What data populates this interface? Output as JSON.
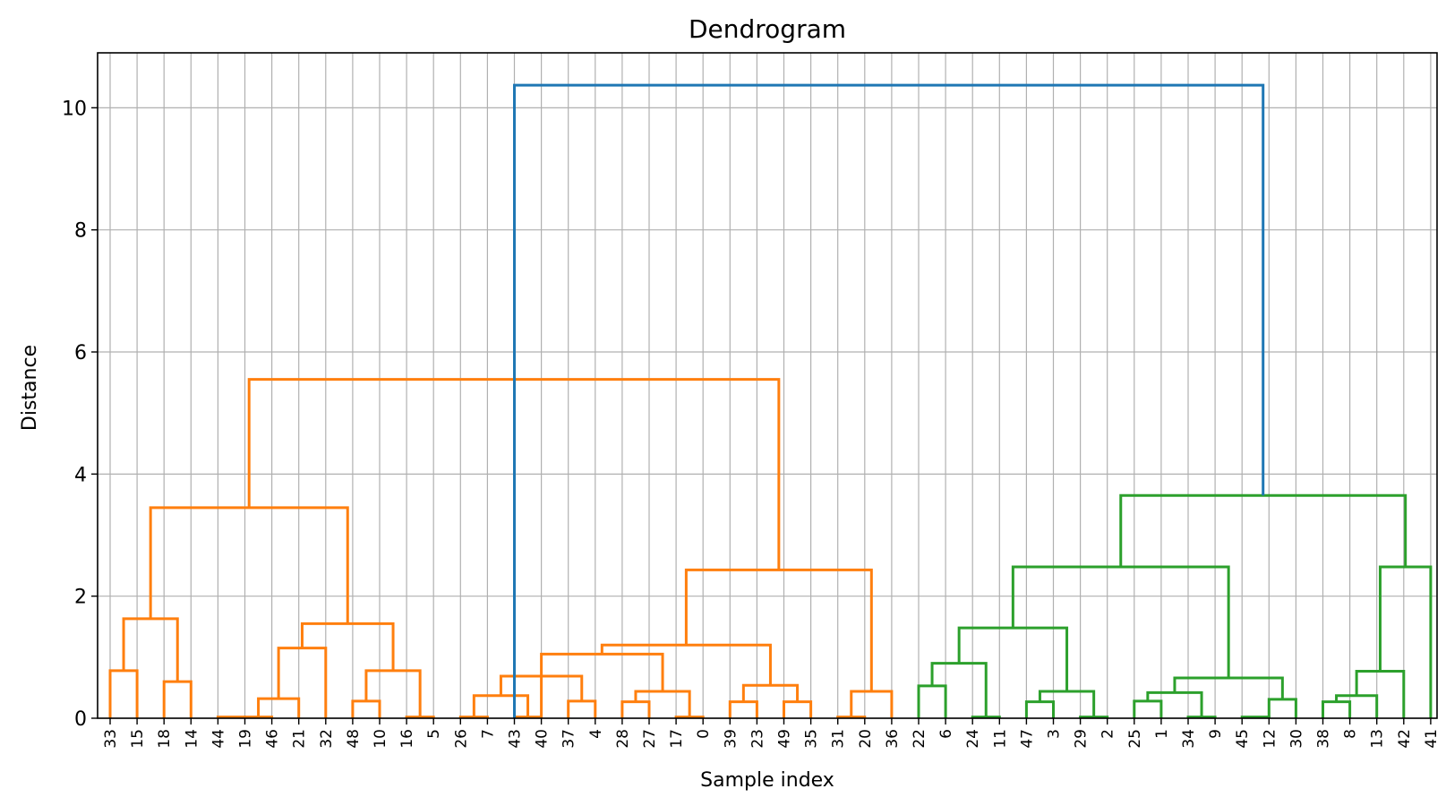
{
  "chart_data": {
    "type": "dendrogram",
    "title": "Dendrogram",
    "xlabel": "Sample index",
    "ylabel": "Distance",
    "ylim": [
      0,
      10.9
    ],
    "yticks": [
      0,
      2,
      4,
      6,
      8,
      10
    ],
    "grid": true,
    "leaves": [
      "33",
      "15",
      "18",
      "14",
      "44",
      "19",
      "46",
      "21",
      "32",
      "48",
      "10",
      "16",
      "5",
      "26",
      "7",
      "43",
      "40",
      "37",
      "4",
      "28",
      "27",
      "17",
      "0",
      "39",
      "23",
      "49",
      "35",
      "31",
      "20",
      "36",
      "22",
      "6",
      "24",
      "11",
      "47",
      "3",
      "29",
      "2",
      "25",
      "1",
      "34",
      "9",
      "45",
      "12",
      "30",
      "38",
      "8",
      "13",
      "42",
      "41"
    ],
    "colors": {
      "orange": "#ff7f0e",
      "green": "#2ca02c",
      "blue": "#1f77b4"
    },
    "links": [
      {
        "left": 0,
        "right": 1,
        "height": 0.78,
        "color": "orange"
      },
      {
        "left": 2,
        "right": 3,
        "height": 0.6,
        "color": "orange"
      },
      {
        "left": 0.5,
        "right": 2.5,
        "height": 1.63,
        "color": "orange"
      },
      {
        "left": 4,
        "right": 5,
        "height": 0.02,
        "color": "orange"
      },
      {
        "left": 5,
        "right": 6,
        "height": 0.02,
        "color": "orange"
      },
      {
        "left": 5.5,
        "right": 7,
        "height": 0.32,
        "color": "orange"
      },
      {
        "left": 6.25,
        "right": 8,
        "height": 1.15,
        "color": "orange"
      },
      {
        "left": 9,
        "right": 10,
        "height": 0.28,
        "color": "orange"
      },
      {
        "left": 11,
        "right": 12,
        "height": 0.02,
        "color": "orange"
      },
      {
        "left": 9.5,
        "right": 11.5,
        "height": 0.78,
        "color": "orange"
      },
      {
        "left": 7.125,
        "right": 10.5,
        "height": 1.55,
        "color": "orange"
      },
      {
        "left": 1.5,
        "right": 8.8125,
        "height": 3.45,
        "color": "orange"
      },
      {
        "left": 13,
        "right": 14,
        "height": 0.02,
        "color": "orange"
      },
      {
        "left": 15,
        "right": 16,
        "height": 0.02,
        "color": "orange"
      },
      {
        "left": 13.5,
        "right": 15.5,
        "height": 0.37,
        "color": "orange"
      },
      {
        "left": 17,
        "right": 18,
        "height": 0.28,
        "color": "orange"
      },
      {
        "left": 14.5,
        "right": 17.5,
        "height": 0.69,
        "color": "orange"
      },
      {
        "left": 19,
        "right": 20,
        "height": 0.27,
        "color": "orange"
      },
      {
        "left": 21,
        "right": 22,
        "height": 0.02,
        "color": "orange"
      },
      {
        "left": 19.5,
        "right": 21.5,
        "height": 0.44,
        "color": "orange"
      },
      {
        "left": 16,
        "right": 20.5,
        "height": 1.05,
        "color": "orange"
      },
      {
        "left": 23,
        "right": 24,
        "height": 0.27,
        "color": "orange"
      },
      {
        "left": 25,
        "right": 26,
        "height": 0.27,
        "color": "orange"
      },
      {
        "left": 23.5,
        "right": 25.5,
        "height": 0.54,
        "color": "orange"
      },
      {
        "left": 18.25,
        "right": 24.5,
        "height": 1.2,
        "color": "orange"
      },
      {
        "left": 27,
        "right": 28,
        "height": 0.02,
        "color": "orange"
      },
      {
        "left": 27.5,
        "right": 29,
        "height": 0.44,
        "color": "orange"
      },
      {
        "left": 21.375,
        "right": 28.25,
        "height": 2.43,
        "color": "orange"
      },
      {
        "left": 5.15625,
        "right": 24.8125,
        "height": 5.55,
        "color": "orange"
      },
      {
        "left": 30,
        "right": 31,
        "height": 0.53,
        "color": "green"
      },
      {
        "left": 32,
        "right": 33,
        "height": 0.02,
        "color": "green"
      },
      {
        "left": 30.5,
        "right": 32.5,
        "height": 0.9,
        "color": "green"
      },
      {
        "left": 34,
        "right": 35,
        "height": 0.27,
        "color": "green"
      },
      {
        "left": 36,
        "right": 37,
        "height": 0.02,
        "color": "green"
      },
      {
        "left": 34.5,
        "right": 36.5,
        "height": 0.44,
        "color": "green"
      },
      {
        "left": 31.5,
        "right": 35.5,
        "height": 1.48,
        "color": "green"
      },
      {
        "left": 38,
        "right": 39,
        "height": 0.28,
        "color": "green"
      },
      {
        "left": 40,
        "right": 41,
        "height": 0.02,
        "color": "green"
      },
      {
        "left": 38.5,
        "right": 40.5,
        "height": 0.42,
        "color": "green"
      },
      {
        "left": 42,
        "right": 43,
        "height": 0.02,
        "color": "green"
      },
      {
        "left": 43,
        "right": 44,
        "height": 0.31,
        "color": "green"
      },
      {
        "left": 39.5,
        "right": 43.5,
        "height": 0.66,
        "color": "green"
      },
      {
        "left": 33.5,
        "right": 41.5,
        "height": 2.48,
        "color": "green"
      },
      {
        "left": 45,
        "right": 46,
        "height": 0.27,
        "color": "green"
      },
      {
        "left": 45.5,
        "right": 47,
        "height": 0.37,
        "color": "green"
      },
      {
        "left": 46.25,
        "right": 48,
        "height": 0.77,
        "color": "green"
      },
      {
        "left": 47.125,
        "right": 49,
        "height": 2.48,
        "color": "green"
      },
      {
        "left": 37.5,
        "right": 48.0625,
        "height": 3.65,
        "color": "green"
      },
      {
        "left": 15,
        "right": 42.78125,
        "height": 10.37,
        "color": "blue"
      }
    ]
  }
}
